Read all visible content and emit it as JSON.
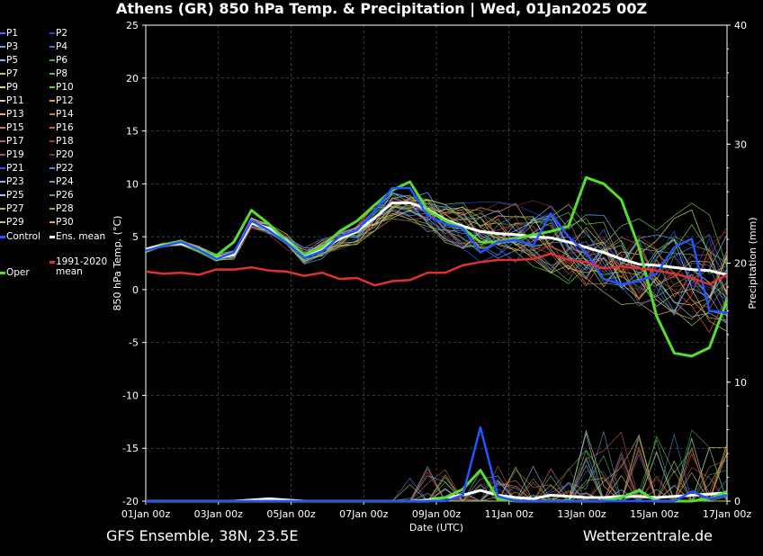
{
  "title": "Athens  (GR)  850 hPa Temp. & Precipitation | Wed, 01Jan2025 00Z",
  "footer": {
    "left": "GFS Ensemble, 38N, 23.5E",
    "right": "Wetterzentrale.de"
  },
  "legend": {
    "members": [
      {
        "label": "P1",
        "color": "#4a6cff"
      },
      {
        "label": "P2",
        "color": "#2244cc"
      },
      {
        "label": "P3",
        "color": "#6f9cff"
      },
      {
        "label": "P4",
        "color": "#3b7bd6"
      },
      {
        "label": "P5",
        "color": "#7fb2e5"
      },
      {
        "label": "P6",
        "color": "#4fae4f"
      },
      {
        "label": "P7",
        "color": "#b7c96a"
      },
      {
        "label": "P8",
        "color": "#5fbf5f"
      },
      {
        "label": "P9",
        "color": "#cde07a"
      },
      {
        "label": "P10",
        "color": "#66d633"
      },
      {
        "label": "P11",
        "color": "#d6d27a"
      },
      {
        "label": "P12",
        "color": "#e0a050"
      },
      {
        "label": "P13",
        "color": "#e6b36e"
      },
      {
        "label": "P14",
        "color": "#cc7a33"
      },
      {
        "label": "P15",
        "color": "#d67a55"
      },
      {
        "label": "P16",
        "color": "#e05a3a"
      },
      {
        "label": "P17",
        "color": "#c85a5a"
      },
      {
        "label": "P18",
        "color": "#aa3a3a"
      },
      {
        "label": "P19",
        "color": "#b04a5a"
      },
      {
        "label": "P20",
        "color": "#8a2a2a"
      },
      {
        "label": "P21",
        "color": "#3355dd"
      },
      {
        "label": "P22",
        "color": "#4a8ae6"
      },
      {
        "label": "P23",
        "color": "#8ab0ff"
      },
      {
        "label": "P24",
        "color": "#6aa0c8"
      },
      {
        "label": "P25",
        "color": "#a0c8ff"
      },
      {
        "label": "P26",
        "color": "#55aa66"
      },
      {
        "label": "P27",
        "color": "#99cc55"
      },
      {
        "label": "P28",
        "color": "#77bb44"
      },
      {
        "label": "P29",
        "color": "#c8c860"
      },
      {
        "label": "P30",
        "color": "#d4b040"
      }
    ],
    "control": {
      "label": "Control",
      "color": "#2255ff"
    },
    "ens_mean": {
      "label": "Ens. mean",
      "color": "#ffffff"
    },
    "clim": {
      "label1": "1991-2020",
      "label2": "mean",
      "color": "#e03030"
    },
    "oper": {
      "label": "Oper",
      "color": "#55dd33"
    }
  },
  "chart_data": {
    "type": "line",
    "title": "Athens  (GR)  850 hPa Temp. & Precipitation | Wed, 01Jan2025 00Z",
    "xlabel": "Date (UTC)",
    "ylabel": "850 hPa Temp. (°C)",
    "ylabel2": "Precipitation (mm)",
    "x_range_days": [
      0,
      16
    ],
    "x_tick_labels": [
      "01Jan 00z",
      "03Jan 00z",
      "05Jan 00z",
      "07Jan 00z",
      "09Jan 00z",
      "11Jan 00z",
      "13Jan 00z",
      "15Jan 00z",
      "17Jan 00z"
    ],
    "x_tick_days": [
      0,
      2,
      4,
      6,
      8,
      10,
      12,
      14,
      16
    ],
    "ylim": [
      -20,
      25
    ],
    "y_ticks": [
      -20,
      -15,
      -10,
      -5,
      0,
      5,
      10,
      15,
      20,
      25
    ],
    "y2lim": [
      0,
      40
    ],
    "y2_ticks": [
      0,
      10,
      20,
      30,
      40
    ],
    "grid": true,
    "series": [
      {
        "name": "Ens. mean",
        "values": [
          3.8,
          4.2,
          4.4,
          3.8,
          3.0,
          3.3,
          6.3,
          5.8,
          4.6,
          3.2,
          3.9,
          4.8,
          5.5,
          6.8,
          8.2,
          8.2,
          7.6,
          6.6,
          6.0,
          5.5,
          5.3,
          5.2,
          5.0,
          4.9,
          4.5,
          4.0,
          3.5,
          2.9,
          2.4,
          2.3,
          2.1,
          1.9,
          1.8,
          1.4
        ]
      },
      {
        "name": "Oper",
        "values": [
          3.6,
          4.2,
          4.6,
          3.7,
          3.2,
          4.5,
          7.5,
          6.2,
          4.5,
          3.3,
          4.0,
          5.5,
          6.5,
          8.0,
          9.4,
          10.2,
          7.5,
          6.5,
          5.8,
          4.5,
          4.5,
          4.8,
          5.2,
          5.5,
          6.0,
          10.6,
          10.0,
          8.5,
          4.0,
          -2.5,
          -6.0,
          -6.3,
          -5.5,
          -1.0
        ]
      },
      {
        "name": "Control",
        "values": [
          3.7,
          4.1,
          4.5,
          3.8,
          2.9,
          3.5,
          6.5,
          5.6,
          4.4,
          3.0,
          3.6,
          5.0,
          5.6,
          7.5,
          9.6,
          9.6,
          7.0,
          6.2,
          5.8,
          3.5,
          4.5,
          4.7,
          4.2,
          7.2,
          5.0,
          3.5,
          1.0,
          0.5,
          0.8,
          1.5,
          4.0,
          4.8,
          -2.0,
          -2.2
        ]
      },
      {
        "name": "1991-2020 mean",
        "values": [
          1.7,
          1.5,
          1.6,
          1.4,
          1.9,
          1.9,
          2.1,
          1.8,
          1.7,
          1.3,
          1.6,
          1.0,
          1.1,
          0.4,
          0.8,
          0.9,
          1.6,
          1.6,
          2.3,
          2.6,
          2.8,
          2.8,
          2.9,
          3.4,
          2.8,
          2.6,
          2.0,
          2.2,
          2.0,
          1.8,
          1.5,
          1.1,
          0.5,
          1.4
        ]
      }
    ],
    "precipitation_mm": {
      "Oper": [
        0,
        0,
        0,
        0,
        0,
        0,
        0,
        0,
        0,
        0,
        0,
        0,
        0,
        0,
        0,
        0,
        0,
        0.3,
        1.0,
        2.6,
        0.2,
        0,
        0,
        0,
        0,
        0,
        0,
        0.3,
        0.9,
        0,
        0,
        0,
        0.2,
        0.8
      ],
      "Control": [
        0,
        0,
        0,
        0,
        0,
        0,
        0,
        0,
        0,
        0,
        0,
        0,
        0,
        0,
        0,
        0,
        0,
        0,
        0.5,
        6.2,
        0.4,
        0,
        0,
        0,
        0,
        0,
        0,
        0,
        0,
        0,
        0,
        0.8,
        0.2,
        0.5
      ],
      "Ens. mean": [
        0,
        0,
        0,
        0,
        0,
        0,
        0.1,
        0.2,
        0.1,
        0,
        0,
        0,
        0,
        0,
        0,
        0,
        0.1,
        0.3,
        0.5,
        0.9,
        0.5,
        0.3,
        0.2,
        0.5,
        0.4,
        0.3,
        0.3,
        0.4,
        0.4,
        0.3,
        0.4,
        0.5,
        0.6,
        0.7
      ]
    }
  }
}
